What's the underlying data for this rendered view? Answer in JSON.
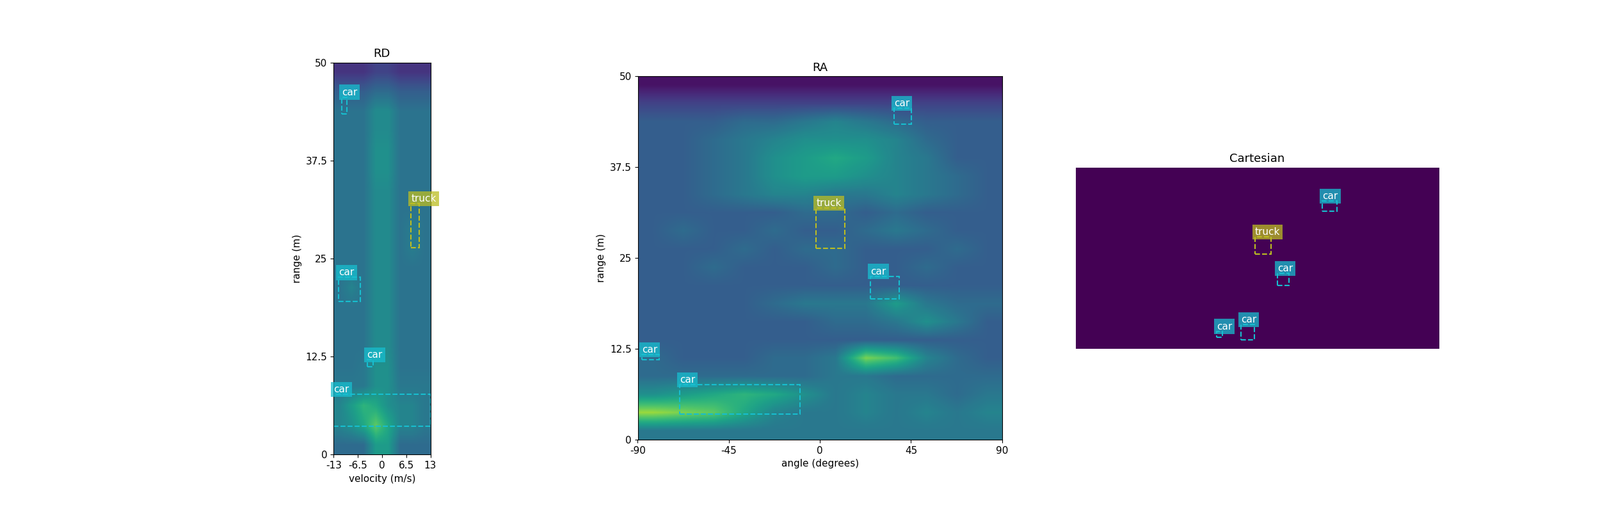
{
  "chart_data": [
    {
      "type": "heatmap",
      "title": "RD",
      "x_label": "velocity (m/s)",
      "y_label": "range (m)",
      "xlim": [
        -13,
        13
      ],
      "ylim": [
        0,
        50
      ],
      "xticks": [
        -13,
        -6.5,
        0,
        6.5,
        13
      ],
      "yticks": [
        0,
        12.5,
        25,
        37.5,
        50
      ],
      "color_range": [
        0,
        1
      ],
      "cells": [
        [
          0.35,
          0.35,
          0.35,
          0.55,
          0.55,
          0.35,
          0.35,
          0.35
        ],
        [
          0.45,
          0.5,
          0.6,
          0.75,
          0.6,
          0.45,
          0.45,
          0.4
        ],
        [
          0.45,
          0.55,
          0.65,
          0.6,
          0.5,
          0.45,
          0.45,
          0.4
        ],
        [
          0.4,
          0.4,
          0.4,
          0.5,
          0.5,
          0.4,
          0.4,
          0.4
        ],
        [
          0.38,
          0.38,
          0.4,
          0.5,
          0.5,
          0.38,
          0.38,
          0.38
        ],
        [
          0.38,
          0.38,
          0.38,
          0.48,
          0.48,
          0.38,
          0.38,
          0.38
        ],
        [
          0.38,
          0.38,
          0.38,
          0.48,
          0.48,
          0.38,
          0.38,
          0.38
        ],
        [
          0.38,
          0.38,
          0.38,
          0.48,
          0.48,
          0.38,
          0.38,
          0.38
        ],
        [
          0.38,
          0.45,
          0.38,
          0.48,
          0.48,
          0.38,
          0.38,
          0.38
        ],
        [
          0.38,
          0.38,
          0.38,
          0.48,
          0.48,
          0.38,
          0.38,
          0.38
        ],
        [
          0.38,
          0.38,
          0.38,
          0.48,
          0.48,
          0.38,
          0.42,
          0.38
        ],
        [
          0.38,
          0.38,
          0.38,
          0.48,
          0.48,
          0.38,
          0.42,
          0.38
        ],
        [
          0.38,
          0.38,
          0.38,
          0.48,
          0.48,
          0.38,
          0.38,
          0.38
        ],
        [
          0.38,
          0.38,
          0.38,
          0.48,
          0.48,
          0.38,
          0.38,
          0.38
        ],
        [
          0.38,
          0.38,
          0.38,
          0.5,
          0.5,
          0.38,
          0.38,
          0.38
        ],
        [
          0.38,
          0.38,
          0.38,
          0.5,
          0.5,
          0.38,
          0.38,
          0.38
        ],
        [
          0.38,
          0.38,
          0.38,
          0.48,
          0.48,
          0.38,
          0.38,
          0.38
        ],
        [
          0.38,
          0.38,
          0.38,
          0.48,
          0.48,
          0.38,
          0.38,
          0.38
        ],
        [
          0.3,
          0.3,
          0.3,
          0.35,
          0.35,
          0.3,
          0.3,
          0.3
        ],
        [
          0.15,
          0.15,
          0.15,
          0.2,
          0.2,
          0.15,
          0.15,
          0.15
        ]
      ],
      "boxes": [
        {
          "label": "car",
          "color": "#17becf",
          "x": [
            -10.8,
            -9.4
          ],
          "y": [
            43.4,
            45.6
          ]
        },
        {
          "label": "truck",
          "color": "#bcbd22",
          "x": [
            7.8,
            10.0
          ],
          "y": [
            26.4,
            32.0
          ]
        },
        {
          "label": "car",
          "color": "#17becf",
          "x": [
            -11.6,
            -5.9
          ],
          "y": [
            19.5,
            22.6
          ]
        },
        {
          "label": "car",
          "color": "#17becf",
          "x": [
            -4.0,
            -2.3
          ],
          "y": [
            11.2,
            12.1
          ]
        },
        {
          "label": "car",
          "color": "#17becf",
          "x": [
            -13,
            13
          ],
          "y": [
            3.6,
            7.7
          ]
        }
      ]
    },
    {
      "type": "heatmap",
      "title": "RA",
      "x_label": "angle (degrees)",
      "y_label": "range (m)",
      "xlim": [
        -90,
        90
      ],
      "ylim": [
        0,
        50
      ],
      "xticks": [
        -90,
        -45,
        0,
        45,
        90
      ],
      "yticks": [
        0,
        12.5,
        25,
        37.5,
        50
      ],
      "color_range": [
        0,
        1
      ],
      "cells": [
        [
          0.4,
          0.4,
          0.4,
          0.4,
          0.4,
          0.4,
          0.4,
          0.4,
          0.4,
          0.4,
          0.4,
          0.4
        ],
        [
          0.85,
          0.8,
          0.75,
          0.6,
          0.45,
          0.4,
          0.4,
          0.45,
          0.4,
          0.45,
          0.4,
          0.45
        ],
        [
          0.5,
          0.55,
          0.6,
          0.65,
          0.6,
          0.5,
          0.4,
          0.45,
          0.4,
          0.4,
          0.35,
          0.4
        ],
        [
          0.35,
          0.35,
          0.35,
          0.35,
          0.35,
          0.35,
          0.4,
          0.4,
          0.35,
          0.35,
          0.35,
          0.35
        ],
        [
          0.35,
          0.3,
          0.3,
          0.3,
          0.35,
          0.35,
          0.4,
          0.8,
          0.7,
          0.45,
          0.35,
          0.3
        ],
        [
          0.3,
          0.3,
          0.3,
          0.3,
          0.3,
          0.3,
          0.3,
          0.3,
          0.3,
          0.3,
          0.3,
          0.3
        ],
        [
          0.3,
          0.3,
          0.3,
          0.3,
          0.3,
          0.3,
          0.35,
          0.35,
          0.4,
          0.5,
          0.4,
          0.3
        ],
        [
          0.3,
          0.3,
          0.3,
          0.3,
          0.35,
          0.4,
          0.4,
          0.4,
          0.55,
          0.4,
          0.35,
          0.35
        ],
        [
          0.3,
          0.3,
          0.3,
          0.3,
          0.3,
          0.3,
          0.3,
          0.3,
          0.3,
          0.3,
          0.3,
          0.3
        ],
        [
          0.3,
          0.3,
          0.35,
          0.3,
          0.3,
          0.3,
          0.35,
          0.3,
          0.3,
          0.35,
          0.3,
          0.3
        ],
        [
          0.3,
          0.3,
          0.3,
          0.35,
          0.3,
          0.35,
          0.35,
          0.3,
          0.3,
          0.3,
          0.35,
          0.3
        ],
        [
          0.3,
          0.35,
          0.3,
          0.3,
          0.35,
          0.3,
          0.3,
          0.35,
          0.4,
          0.35,
          0.3,
          0.3
        ],
        [
          0.3,
          0.3,
          0.3,
          0.3,
          0.3,
          0.35,
          0.35,
          0.3,
          0.35,
          0.3,
          0.3,
          0.3
        ],
        [
          0.3,
          0.3,
          0.35,
          0.4,
          0.45,
          0.45,
          0.4,
          0.4,
          0.45,
          0.4,
          0.35,
          0.3
        ],
        [
          0.3,
          0.3,
          0.35,
          0.4,
          0.5,
          0.55,
          0.55,
          0.5,
          0.45,
          0.4,
          0.35,
          0.3
        ],
        [
          0.3,
          0.3,
          0.35,
          0.4,
          0.5,
          0.55,
          0.6,
          0.55,
          0.45,
          0.4,
          0.3,
          0.3
        ],
        [
          0.3,
          0.3,
          0.35,
          0.4,
          0.45,
          0.5,
          0.5,
          0.5,
          0.45,
          0.35,
          0.3,
          0.3
        ],
        [
          0.3,
          0.3,
          0.3,
          0.35,
          0.35,
          0.4,
          0.45,
          0.4,
          0.35,
          0.3,
          0.3,
          0.3
        ],
        [
          0.2,
          0.2,
          0.2,
          0.2,
          0.2,
          0.2,
          0.2,
          0.2,
          0.2,
          0.2,
          0.2,
          0.2
        ],
        [
          0.05,
          0.05,
          0.05,
          0.05,
          0.05,
          0.05,
          0.05,
          0.05,
          0.05,
          0.05,
          0.05,
          0.05
        ]
      ],
      "boxes": [
        {
          "label": "car",
          "color": "#17becf",
          "x": [
            36.6,
            45.1
          ],
          "y": [
            43.4,
            45.6
          ]
        },
        {
          "label": "truck",
          "color": "#bcbd22",
          "x": [
            -1.8,
            12.4
          ],
          "y": [
            26.3,
            31.9
          ]
        },
        {
          "label": "car",
          "color": "#17becf",
          "x": [
            25.0,
            39.1
          ],
          "y": [
            19.4,
            22.5
          ]
        },
        {
          "label": "car",
          "color": "#17becf",
          "x": [
            -88.0,
            -79.4
          ],
          "y": [
            11.0,
            11.7
          ]
        },
        {
          "label": "car",
          "color": "#17becf",
          "x": [
            -69.3,
            -9.8
          ],
          "y": [
            3.5,
            7.6
          ]
        }
      ]
    },
    {
      "type": "heatmap",
      "title": "Cartesian",
      "tick_labels": false,
      "xlim": [
        -50,
        50
      ],
      "ylim": [
        0,
        50
      ],
      "color_range": [
        0,
        1
      ],
      "cells": [
        [
          0
        ]
      ],
      "boxes": [
        {
          "label": "car",
          "color": "#17becf",
          "x": [
            18.0,
            21.9
          ],
          "y": [
            37.9,
            40.7
          ]
        },
        {
          "label": "truck",
          "color": "#bcbd22",
          "x": [
            -0.6,
            3.9
          ],
          "y": [
            26.1,
            30.9
          ]
        },
        {
          "label": "car",
          "color": "#17becf",
          "x": [
            5.6,
            8.7
          ],
          "y": [
            17.4,
            20.8
          ]
        },
        {
          "label": "car",
          "color": "#17becf",
          "x": [
            -4.5,
            -0.8
          ],
          "y": [
            2.5,
            6.7
          ]
        },
        {
          "label": "car",
          "color": "#17becf",
          "x": [
            -11.2,
            -9.6
          ],
          "y": [
            3.1,
            4.8
          ]
        }
      ]
    }
  ]
}
